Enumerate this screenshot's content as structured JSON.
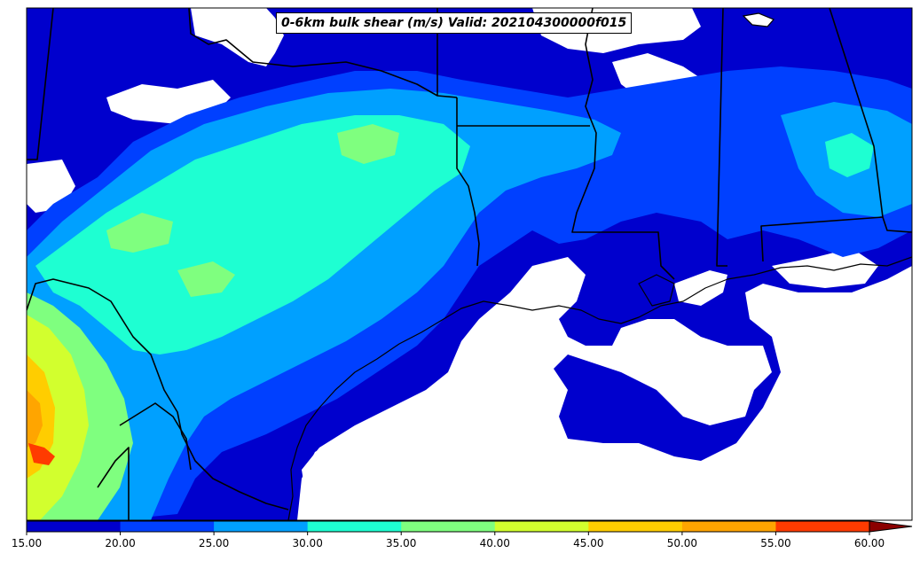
{
  "map": {
    "title": "0-6km bulk shear (m/s) Valid: 202104300000f015",
    "variable": "0-6km bulk shear",
    "units": "m/s",
    "valid_time": "202104300000f015",
    "region": "Texas, Gulf Coast, Southern U.S., northern Mexico",
    "background_color": "#ffffff",
    "border_color": "#000000"
  },
  "colorbar": {
    "ticks": [
      "15.00",
      "20.00",
      "25.00",
      "30.00",
      "35.00",
      "40.00",
      "45.00",
      "50.00",
      "55.00",
      "60.00"
    ],
    "colors": [
      "#0000cd",
      "#0040ff",
      "#00a0ff",
      "#1effd2",
      "#7fff7f",
      "#d2ff2e",
      "#ffcd00",
      "#ffa500",
      "#ff3b00",
      "#c80000",
      "#8b0000"
    ],
    "extend": "max"
  },
  "contour_legend": [
    {
      "range": "15-20",
      "color": "#0000cd"
    },
    {
      "range": "20-25",
      "color": "#0040ff"
    },
    {
      "range": "25-30",
      "color": "#00a0ff"
    },
    {
      "range": "30-35",
      "color": "#1effd2"
    },
    {
      "range": "35-40",
      "color": "#7fff7f"
    },
    {
      "range": "40-45",
      "color": "#d2ff2e"
    },
    {
      "range": "45-50",
      "color": "#ffcd00"
    },
    {
      "range": "50-55",
      "color": "#ffa500"
    },
    {
      "range": "55-60",
      "color": "#ff3b00"
    },
    {
      "range": ">60",
      "color": "#c80000"
    }
  ]
}
